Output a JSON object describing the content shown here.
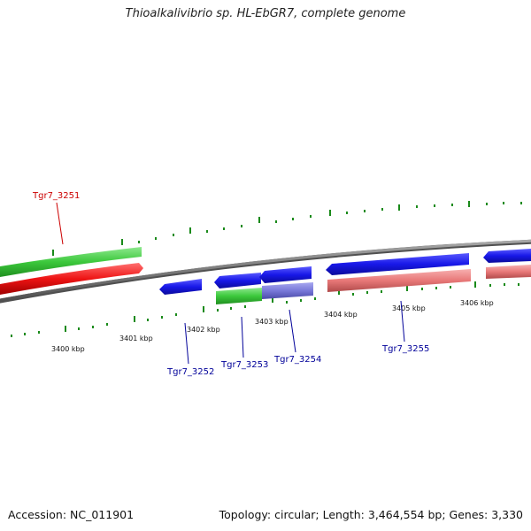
{
  "title": "Thioalkalivibrio sp. HL-EbGR7, complete genome",
  "footer": {
    "accession": "Accession: NC_011901",
    "summary": "Topology: circular; Length: 3,464,554 bp; Genes: 3,330"
  },
  "axis": {
    "ticks": [
      "3400 kbp",
      "3401 kbp",
      "3402 kbp",
      "3403 kbp",
      "3404 kbp",
      "3405 kbp",
      "3406 kbp"
    ]
  },
  "genes": {
    "forward_label": "Tgr7_3251",
    "reverse_labels": [
      "Tgr7_3252",
      "Tgr7_3253",
      "Tgr7_3254",
      "Tgr7_3255"
    ]
  },
  "colors": {
    "backbone": "#808080",
    "tick": "#1a8a1a",
    "forward_gene": "#e81010",
    "reverse_gene": "#1a1ae8",
    "green_feature": "#3cc83c",
    "pink_feature": "#e87878",
    "purple_feature": "#7878d8",
    "label_forward": "#cc0000",
    "label_reverse": "#000099"
  }
}
